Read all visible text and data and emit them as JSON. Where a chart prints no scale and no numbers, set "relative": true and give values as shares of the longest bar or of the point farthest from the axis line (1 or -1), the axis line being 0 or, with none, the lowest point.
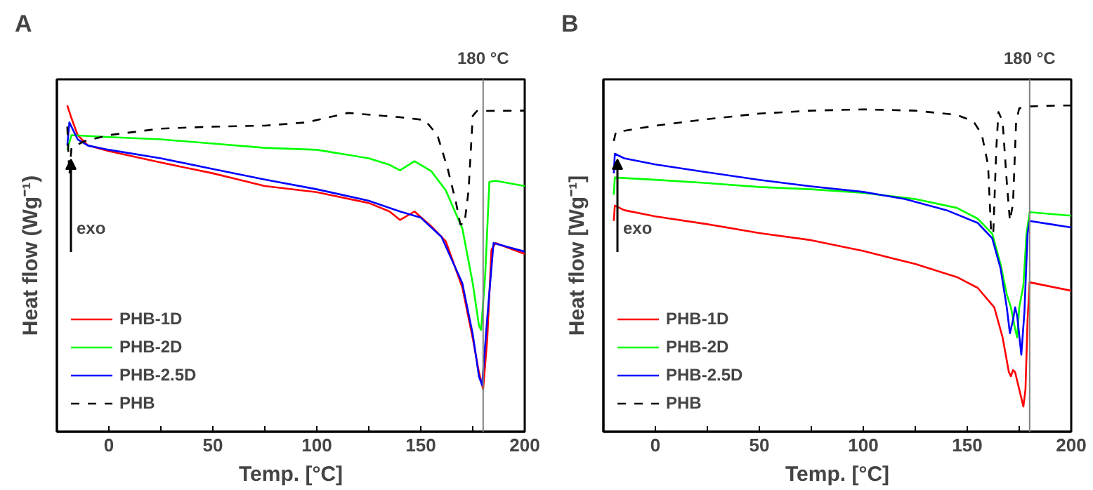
{
  "chart_data": [
    {
      "type": "line",
      "title": "A",
      "xlabel": "Temp. [°C]",
      "ylabel": "Heat flow (Wg⁻¹)",
      "relative": true,
      "legend": "bottom left",
      "tick_labels": "x",
      "grid": false,
      "line_style": "solid",
      "xlim": [
        -25,
        200
      ],
      "xticks": [
        {
          "value": -25,
          "label": null
        },
        0,
        {
          "value": 25,
          "label": null
        },
        50,
        {
          "value": 75,
          "label": null
        },
        100,
        {
          "value": 125,
          "label": null
        },
        150,
        {
          "value": 175,
          "label": null
        },
        200
      ],
      "ref_lines": [
        {
          "axis": "x",
          "value": 180,
          "label": "180 °C",
          "color": "#808080"
        }
      ],
      "annotations": [
        "exo"
      ],
      "series": [
        {
          "name": "PHB-1D",
          "color": "#ff0000",
          "x": [
            -20,
            -18,
            -15,
            -10,
            0,
            25,
            50,
            75,
            100,
            125,
            135,
            140,
            147,
            155,
            162,
            170,
            175,
            178,
            180,
            182,
            184,
            186,
            200
          ],
          "values": [
            1.0,
            0.961,
            0.909,
            0.877,
            0.86,
            0.825,
            0.792,
            0.753,
            0.734,
            0.701,
            0.675,
            0.649,
            0.675,
            0.63,
            0.584,
            0.442,
            0.286,
            0.182,
            0.13,
            0.286,
            0.558,
            0.578,
            0.545
          ]
        },
        {
          "name": "PHB-2D",
          "color": "#00ff00",
          "x": [
            -20,
            -18,
            0,
            25,
            50,
            75,
            100,
            125,
            135,
            140,
            147,
            155,
            162,
            170,
            175,
            178,
            179,
            181,
            183,
            186,
            200
          ],
          "values": [
            0.864,
            0.909,
            0.903,
            0.896,
            0.883,
            0.87,
            0.864,
            0.838,
            0.818,
            0.801,
            0.829,
            0.799,
            0.74,
            0.623,
            0.455,
            0.325,
            0.312,
            0.481,
            0.766,
            0.769,
            0.753
          ]
        },
        {
          "name": "PHB-2.5D",
          "color": "#0000ff",
          "x": [
            -20,
            -19,
            -15,
            -10,
            0,
            25,
            50,
            75,
            100,
            125,
            140,
            150,
            160,
            170,
            175,
            178,
            179.5,
            182,
            185,
            200
          ],
          "values": [
            0.877,
            0.948,
            0.896,
            0.877,
            0.864,
            0.838,
            0.805,
            0.773,
            0.743,
            0.708,
            0.675,
            0.656,
            0.597,
            0.455,
            0.299,
            0.169,
            0.143,
            0.351,
            0.578,
            0.552
          ]
        },
        {
          "name": "PHB",
          "color": "#000000",
          "line_style": "dashed",
          "x": [
            -20,
            -19,
            -18,
            -12,
            0,
            25,
            50,
            75,
            95,
            115,
            140,
            152,
            158,
            163,
            167,
            169,
            171,
            173,
            175,
            177,
            200
          ],
          "values": [
            0.935,
            0.786,
            0.87,
            0.89,
            0.909,
            0.929,
            0.935,
            0.938,
            0.948,
            0.977,
            0.964,
            0.955,
            0.909,
            0.805,
            0.701,
            0.636,
            0.636,
            0.74,
            0.968,
            0.983,
            0.984
          ]
        }
      ]
    },
    {
      "type": "line",
      "title": "B",
      "xlabel": "Temp. [°C]",
      "ylabel": "Heat flow [Wg⁻¹]",
      "relative": true,
      "legend": "bottom left",
      "tick_labels": "x",
      "grid": false,
      "line_style": "solid",
      "xlim": [
        -25,
        200
      ],
      "xticks": [
        {
          "value": -25,
          "label": null
        },
        0,
        {
          "value": 25,
          "label": null
        },
        50,
        {
          "value": 75,
          "label": null
        },
        100,
        {
          "value": 125,
          "label": null
        },
        150,
        {
          "value": 175,
          "label": null
        },
        200
      ],
      "ref_lines": [
        {
          "axis": "x",
          "value": 180,
          "label": "180 °C",
          "color": "#808080"
        }
      ],
      "annotations": [
        "exo"
      ],
      "series": [
        {
          "name": "PHB-1D",
          "color": "#ff0000",
          "x": [
            -20,
            -19.5,
            -15,
            0,
            25,
            50,
            75,
            100,
            125,
            145,
            155,
            163,
            167,
            170,
            171,
            172,
            173,
            175,
            177,
            178,
            179,
            180,
            200
          ],
          "values": [
            0.646,
            0.693,
            0.679,
            0.66,
            0.636,
            0.609,
            0.587,
            0.554,
            0.514,
            0.474,
            0.441,
            0.381,
            0.289,
            0.183,
            0.17,
            0.189,
            0.183,
            0.13,
            0.077,
            0.13,
            0.342,
            0.458,
            0.432
          ]
        },
        {
          "name": "PHB-2D",
          "color": "#00ff00",
          "x": [
            -20,
            -19.5,
            0,
            25,
            50,
            75,
            100,
            125,
            145,
            155,
            162,
            166,
            169,
            171,
            173,
            174,
            175,
            177,
            178.5,
            180,
            200
          ],
          "values": [
            0.726,
            0.779,
            0.772,
            0.762,
            0.75,
            0.743,
            0.732,
            0.713,
            0.686,
            0.653,
            0.607,
            0.514,
            0.421,
            0.381,
            0.315,
            0.289,
            0.381,
            0.448,
            0.607,
            0.673,
            0.662
          ]
        },
        {
          "name": "PHB-2.5D",
          "color": "#0000ff",
          "x": [
            -20,
            -19.5,
            -15,
            0,
            25,
            50,
            75,
            100,
            120,
            140,
            155,
            162,
            166,
            169,
            170.5,
            172,
            173,
            174,
            176,
            177.5,
            179,
            180,
            190,
            200
          ],
          "values": [
            0.792,
            0.852,
            0.838,
            0.819,
            0.795,
            0.772,
            0.752,
            0.735,
            0.713,
            0.679,
            0.64,
            0.593,
            0.501,
            0.381,
            0.302,
            0.342,
            0.381,
            0.355,
            0.236,
            0.368,
            0.607,
            0.646,
            0.636,
            0.626
          ]
        },
        {
          "name": "PHB",
          "color": "#000000",
          "line_style": "dashed",
          "x": [
            -20,
            -19,
            0,
            25,
            50,
            75,
            100,
            125,
            145,
            153,
            157,
            160,
            161.5,
            162.5,
            164,
            165,
            167,
            169,
            170.5,
            172,
            173.5,
            175,
            180,
            195,
            200
          ],
          "values": [
            0.891,
            0.918,
            0.938,
            0.958,
            0.975,
            0.984,
            0.988,
            0.984,
            0.971,
            0.951,
            0.911,
            0.818,
            0.607,
            0.607,
            0.872,
            0.98,
            0.951,
            0.766,
            0.646,
            0.699,
            0.951,
            0.991,
            0.997,
            1.0,
            1.0
          ]
        }
      ]
    }
  ]
}
